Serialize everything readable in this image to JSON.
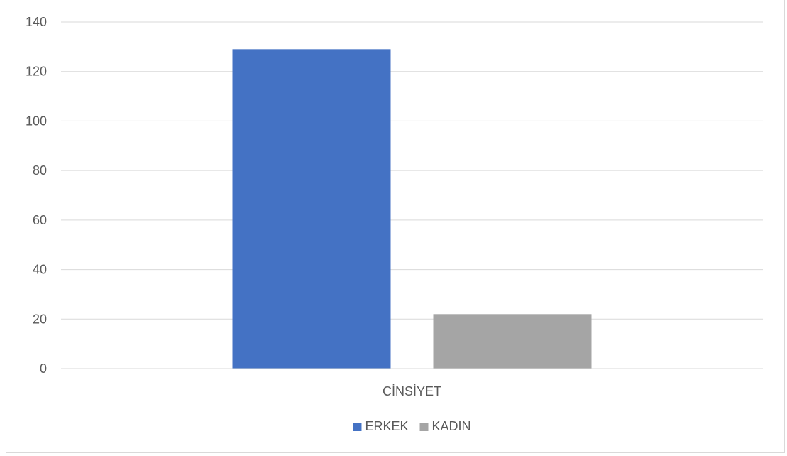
{
  "chart_data": {
    "type": "bar",
    "categories": [
      "CİNSİYET"
    ],
    "series": [
      {
        "name": "ERKEK",
        "values": [
          129
        ],
        "color": "#4472C4"
      },
      {
        "name": "KADIN",
        "values": [
          22
        ],
        "color": "#A5A5A5"
      }
    ],
    "ylim": [
      0,
      140
    ],
    "yticks": [
      0,
      20,
      40,
      60,
      80,
      100,
      120,
      140
    ],
    "grid": true,
    "legend_position": "bottom"
  }
}
